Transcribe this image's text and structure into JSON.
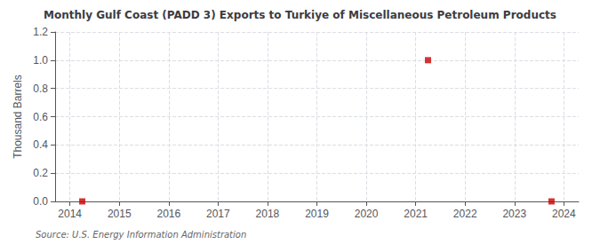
{
  "chart_data": {
    "type": "scatter",
    "title": "Monthly Gulf Coast (PADD 3) Exports to Turkiye of Miscellaneous Petroleum Products",
    "ylabel": "Thousand Barrels",
    "source": "Source: U.S. Energy Information Administration",
    "x": [
      2014.25,
      2021.25,
      2023.75
    ],
    "values": [
      0.0,
      1.0,
      0.0
    ],
    "color": "#cc0000",
    "marker": "square",
    "xlim": [
      2013.7,
      2024.3
    ],
    "xticks": [
      2014,
      2015,
      2016,
      2017,
      2018,
      2019,
      2020,
      2021,
      2022,
      2023,
      2024
    ],
    "ylim": [
      0.0,
      1.2
    ],
    "yticks": [
      {
        "value": 0.0,
        "label": "0.0"
      },
      0.2,
      0.4,
      0.6,
      0.8,
      {
        "value": 1.0,
        "label": "1.0"
      },
      1.2
    ],
    "grid": true
  }
}
